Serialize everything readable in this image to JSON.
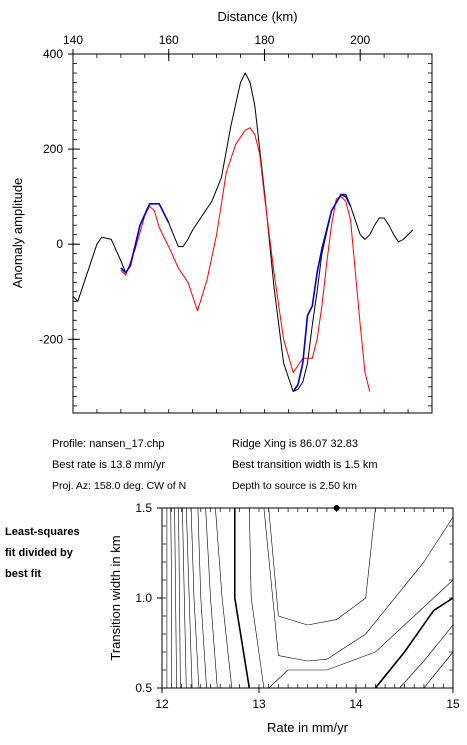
{
  "chart_data": [
    {
      "type": "line",
      "title": "",
      "xlabel": "Distance (km)",
      "ylabel": "Anomaly amplitude",
      "xlim": [
        140,
        215
      ],
      "ylim": [
        -355,
        400
      ],
      "x_ticks": [
        140,
        160,
        180,
        200
      ],
      "y_ticks": [
        400,
        200,
        0,
        -200
      ],
      "x_axis_position": "top",
      "series": [
        {
          "color": "#000000",
          "x": [
            140,
            141,
            143,
            145,
            146,
            148,
            150,
            151,
            152,
            154,
            156,
            158,
            160,
            162,
            163,
            164,
            165,
            167,
            169,
            171,
            173,
            175,
            176,
            177,
            178,
            180,
            182,
            184,
            186,
            187,
            188,
            189,
            190,
            191,
            192,
            194,
            196,
            197,
            198,
            200,
            201,
            202,
            203,
            204,
            205,
            206,
            207,
            208,
            209,
            211
          ],
          "y": [
            -110,
            -120,
            -60,
            0,
            15,
            10,
            -35,
            -60,
            -45,
            40,
            85,
            85,
            45,
            -5,
            -5,
            10,
            30,
            60,
            90,
            140,
            250,
            340,
            360,
            340,
            290,
            110,
            -90,
            -250,
            -310,
            -305,
            -290,
            -250,
            -170,
            -100,
            -20,
            70,
            105,
            105,
            80,
            20,
            10,
            20,
            40,
            55,
            55,
            40,
            20,
            5,
            10,
            30
          ]
        },
        {
          "color": "#ff0000",
          "x": [
            150,
            151,
            153,
            155,
            156,
            157,
            158,
            160,
            162,
            164,
            166,
            168,
            170,
            172,
            174,
            176,
            177,
            178,
            179,
            180,
            182,
            184,
            186,
            187,
            188,
            189,
            190,
            191,
            192,
            193,
            194,
            195,
            196,
            197,
            198,
            199,
            200,
            201,
            202
          ],
          "y": [
            -55,
            -65,
            -10,
            60,
            80,
            70,
            35,
            -5,
            -50,
            -80,
            -140,
            -75,
            20,
            150,
            210,
            240,
            245,
            230,
            190,
            100,
            -60,
            -200,
            -270,
            -255,
            -240,
            -240,
            -240,
            -200,
            -130,
            -40,
            40,
            95,
            100,
            90,
            50,
            -60,
            -170,
            -270,
            -310
          ]
        },
        {
          "color": "#0000cc",
          "x": [
            150,
            151,
            152,
            154,
            156,
            158,
            160,
            176,
            186,
            187,
            188,
            189,
            190,
            191,
            192,
            194,
            196,
            197,
            198
          ],
          "y": [
            -50,
            -60,
            -45,
            40,
            85,
            85,
            45,
            null,
            -310,
            -295,
            -250,
            -150,
            -130,
            -60,
            -10,
            70,
            105,
            100,
            80
          ]
        }
      ]
    },
    {
      "type": "contour",
      "title": "",
      "xlabel": "Rate in mm/yr",
      "ylabel": "Transition width in km",
      "xlim": [
        12,
        15
      ],
      "ylim": [
        0.5,
        1.5
      ],
      "x_ticks": [
        12,
        13,
        14,
        15
      ],
      "y_ticks": [
        1.5,
        1.0,
        0.5
      ],
      "best_fit_point": {
        "x": 13.8,
        "y": 1.5
      },
      "contours": [
        {
          "weight": "thin",
          "x": [
            12.05,
            12.05,
            12.05
          ]
        },
        {
          "weight": "thin",
          "x": [
            12.09,
            12.1,
            12.1
          ]
        },
        {
          "weight": "thin",
          "x": [
            12.13,
            12.14,
            12.15
          ]
        },
        {
          "weight": "thin",
          "x": [
            12.17,
            12.18,
            12.19
          ]
        },
        {
          "weight": "thin",
          "x": [
            12.21,
            12.23,
            12.25
          ]
        },
        {
          "weight": "thin",
          "x": [
            12.25,
            12.28,
            12.31
          ]
        },
        {
          "weight": "thin",
          "x": [
            12.3,
            12.33,
            12.38
          ]
        },
        {
          "weight": "thin",
          "x": [
            12.37,
            12.4,
            12.46
          ]
        },
        {
          "weight": "thin",
          "x": [
            12.45,
            12.5,
            12.57
          ]
        },
        {
          "weight": "thin",
          "x": [
            12.55,
            12.62,
            12.72
          ]
        },
        {
          "weight": "thick",
          "x": [
            12.75,
            12.75,
            12.9
          ]
        },
        {
          "weight": "thin",
          "x": [
            12.9,
            12.92,
            13.05
          ]
        }
      ],
      "inner_contours": [
        {
          "weight": "thin",
          "x": [
            13.1,
            13.2,
            13.5,
            13.8,
            14.1,
            14.2
          ],
          "y": [
            1.5,
            0.9,
            0.85,
            0.88,
            1.0,
            1.5
          ]
        },
        {
          "weight": "thin",
          "x": [
            13.05,
            13.2,
            13.5,
            13.7,
            14.1,
            14.7,
            15.0
          ],
          "y": [
            1.5,
            0.68,
            0.65,
            0.66,
            0.8,
            1.2,
            1.45
          ]
        },
        {
          "weight": "thin",
          "x": [
            13.1,
            13.3,
            13.7,
            14.2,
            14.8,
            15.0
          ],
          "y": [
            0.5,
            0.6,
            0.6,
            0.7,
            1.0,
            1.1
          ]
        },
        {
          "weight": "thick",
          "x": [
            14.2,
            14.5,
            14.8,
            15.0
          ],
          "y": [
            0.5,
            0.7,
            0.93,
            1.0
          ]
        },
        {
          "weight": "thin",
          "x": [
            14.45,
            14.7,
            15.0
          ],
          "y": [
            0.5,
            0.65,
            0.85
          ]
        },
        {
          "weight": "thin",
          "x": [
            14.7,
            14.85,
            15.0
          ],
          "y": [
            0.5,
            0.6,
            0.7
          ]
        }
      ]
    }
  ],
  "info": {
    "profile": "Profile: nansen_17.chp",
    "ridge_xing": "Ridge Xing is 86.07 32.83",
    "best_rate": "Best rate is 13.8 mm/yr",
    "best_width": "Best transition width is 1.5 km",
    "proj_az": "Proj. Az: 158.0 deg. CW of N",
    "depth": "Depth to source is   2.50 km"
  },
  "side_note": [
    "Least-squares",
    "fit divided by",
    "best fit"
  ]
}
